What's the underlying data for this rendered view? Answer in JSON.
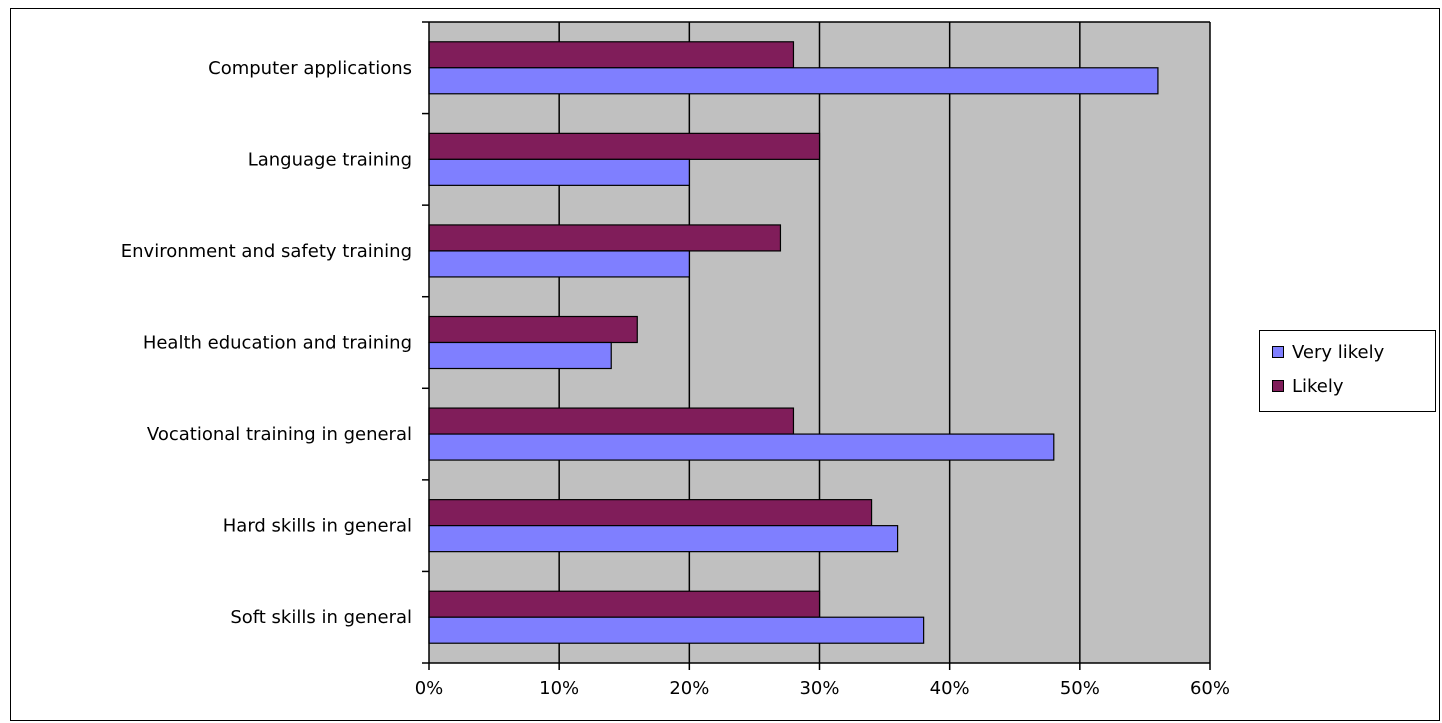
{
  "chart_data": {
    "type": "bar",
    "orientation": "horizontal",
    "categories": [
      "Computer applications",
      "Language training",
      "Environment and safety training",
      "Health education and training",
      "Vocational training in general",
      "Hard skills in general",
      "Soft skills in general"
    ],
    "series": [
      {
        "name": "Likely",
        "color": "#801d5a",
        "values": [
          28,
          30,
          27,
          16,
          28,
          34,
          30
        ]
      },
      {
        "name": "Very likely",
        "color": "#7f7fff",
        "values": [
          56,
          20,
          20,
          14,
          48,
          36,
          38
        ]
      }
    ],
    "xlim": [
      0,
      60
    ],
    "x_ticks": [
      0,
      10,
      20,
      30,
      40,
      50,
      60
    ],
    "x_tick_labels": [
      "0%",
      "10%",
      "20%",
      "30%",
      "40%",
      "50%",
      "60%"
    ],
    "plot_background": "#c0c0c0",
    "grid": "vertical",
    "legend_position": "right",
    "legend_entries": [
      "Very likely",
      "Likely"
    ]
  }
}
